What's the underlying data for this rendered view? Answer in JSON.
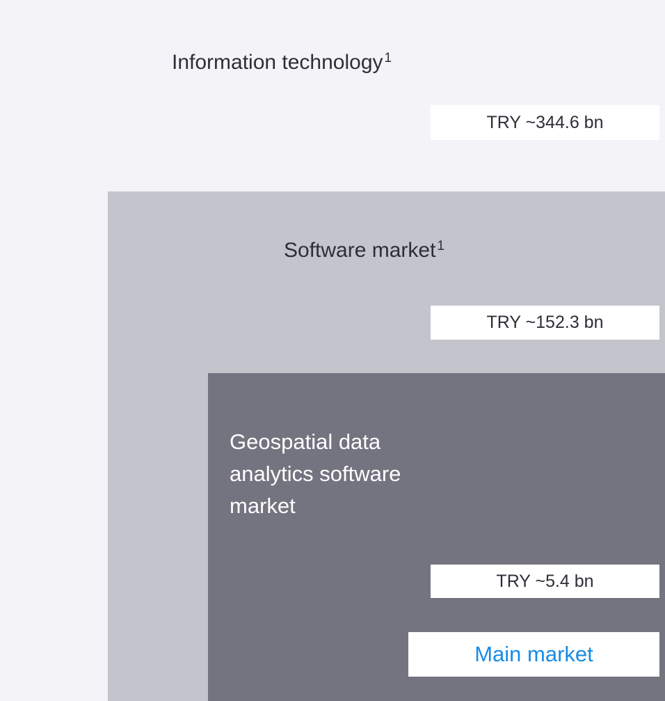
{
  "levels": [
    {
      "title": "Information technology",
      "footnote": "1",
      "value": "TRY ~344.6 bn"
    },
    {
      "title": "Software market",
      "footnote": "1",
      "value": "TRY ~152.3 bn"
    },
    {
      "title": "Geospatial data analytics software market",
      "value": "TRY ~5.4 bn",
      "tag": "Main market"
    }
  ]
}
